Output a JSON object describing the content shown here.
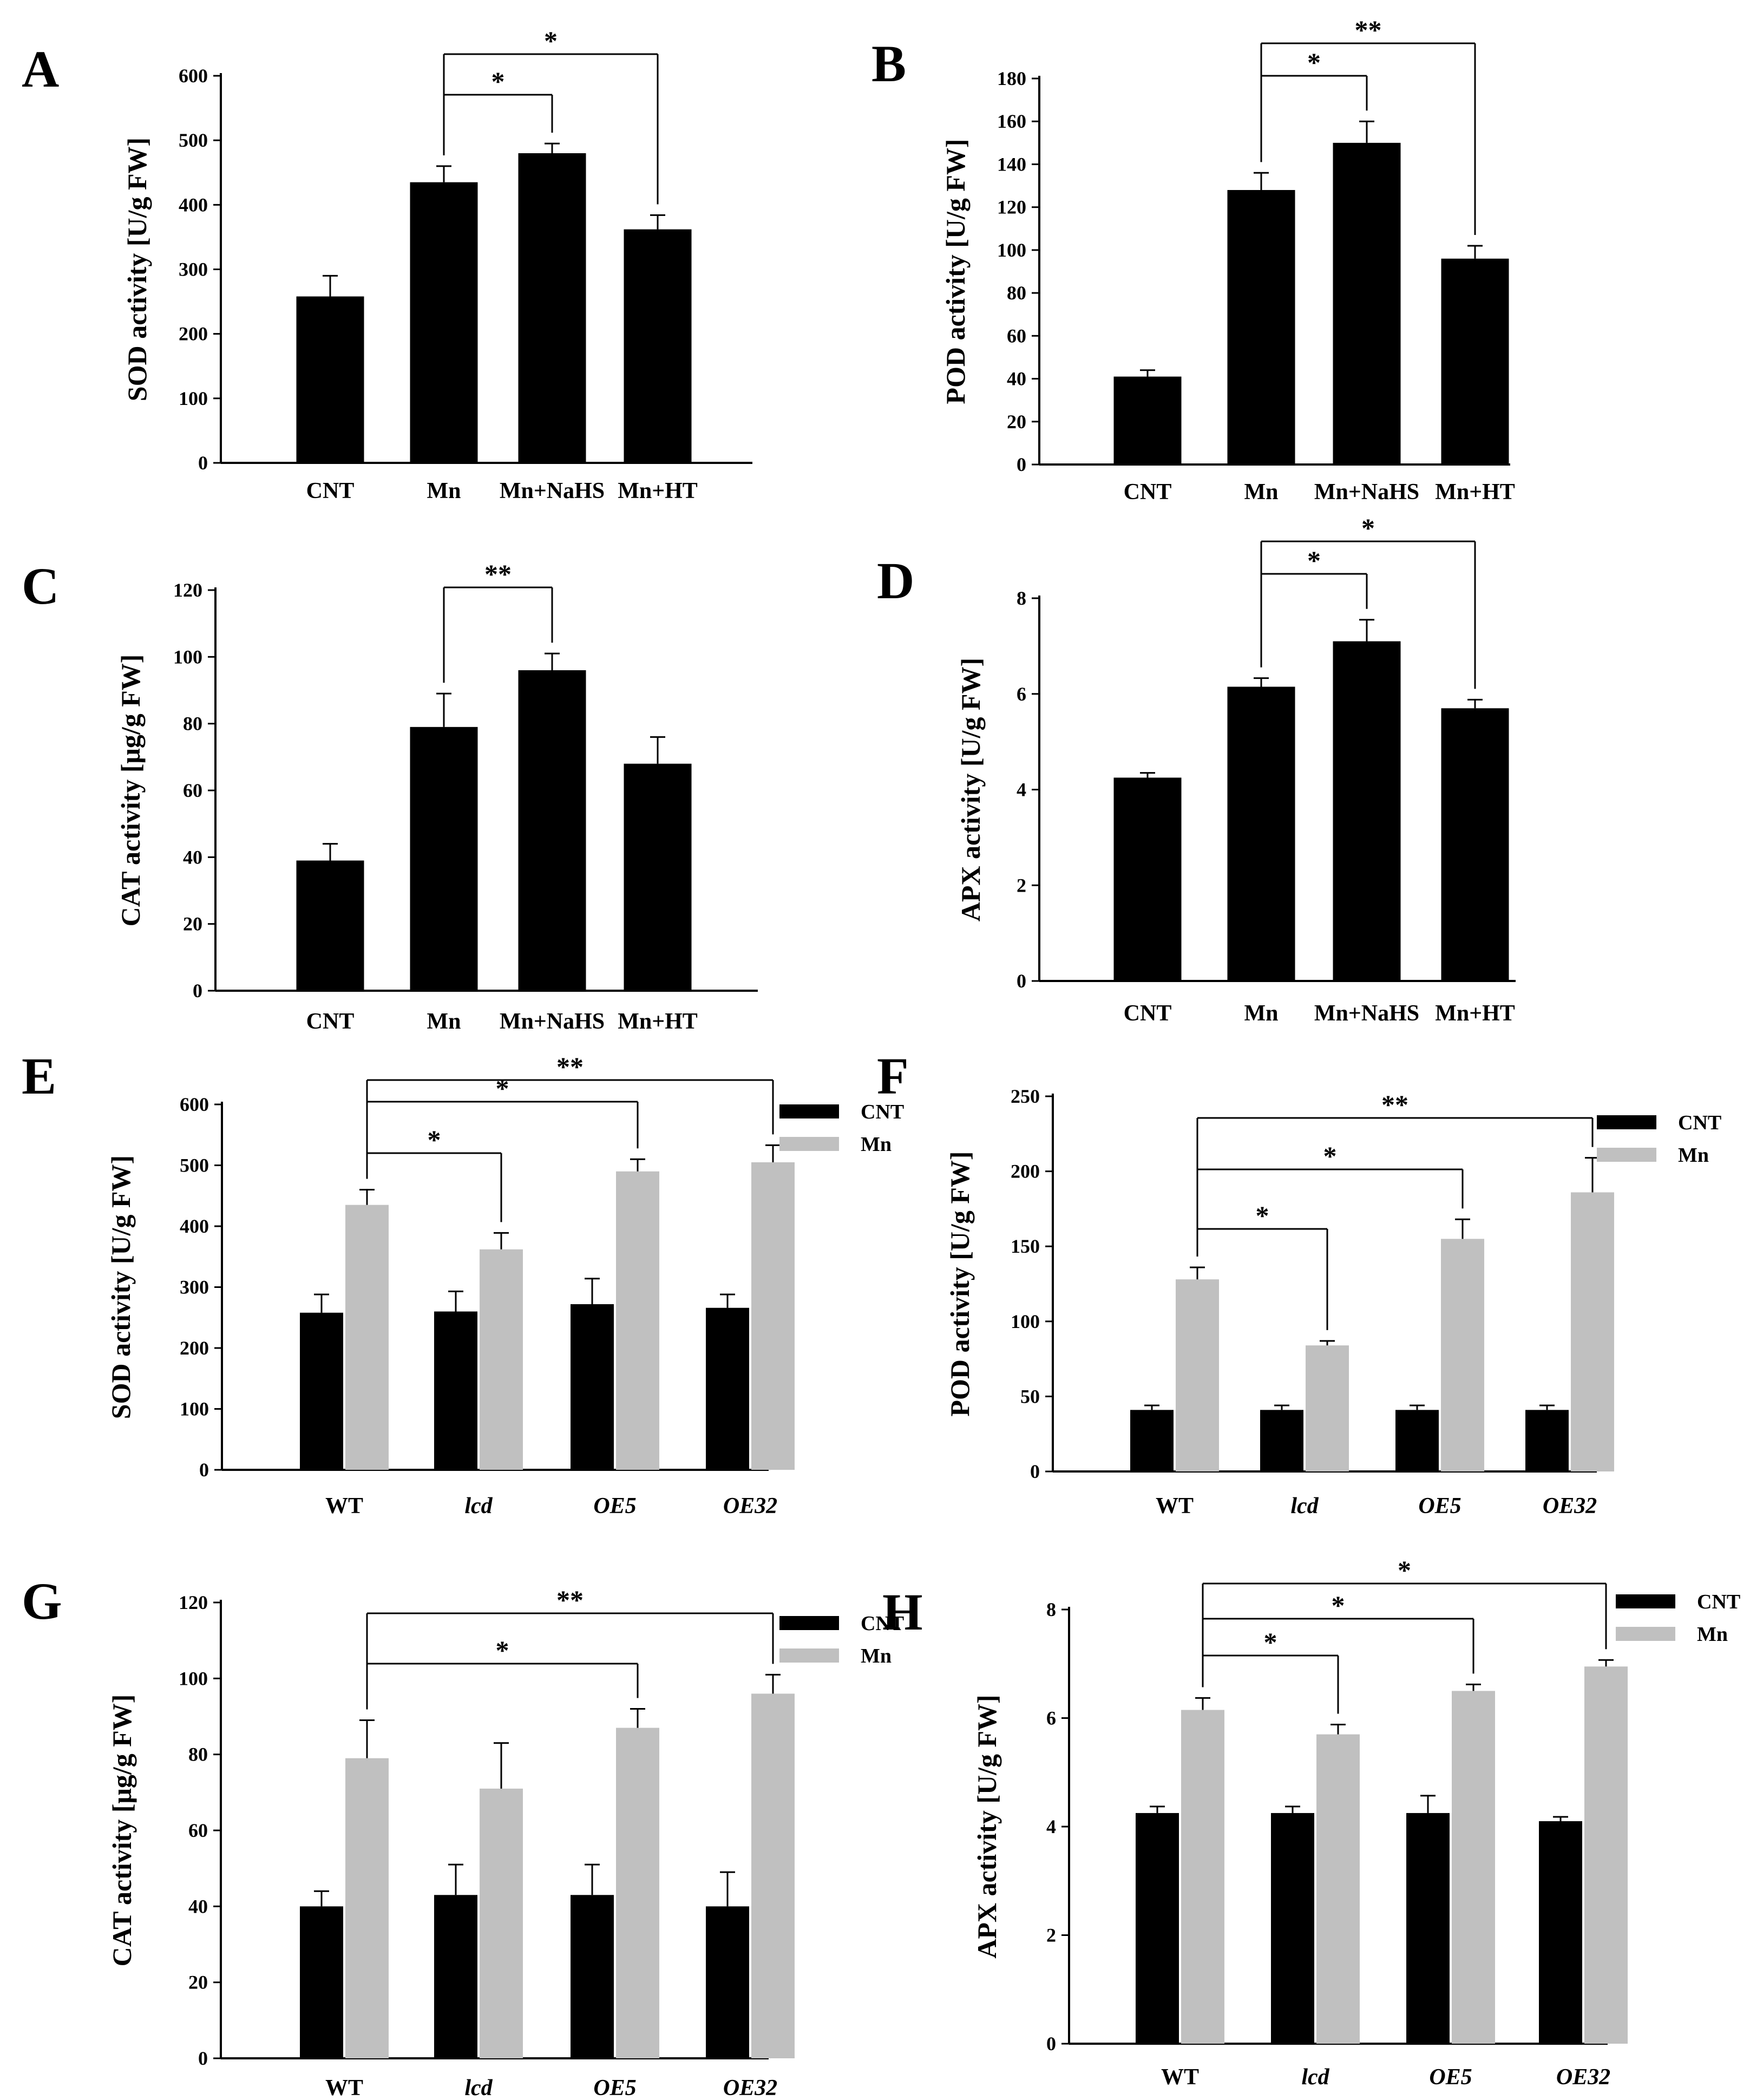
{
  "figure": {
    "colors": {
      "bar": "#000000",
      "control": "#000000",
      "treatment": "#c0c0c0",
      "axis": "#000000",
      "bracket": "#000000"
    }
  },
  "chart_data": [
    {
      "panel": "A",
      "type": "bar",
      "categories": [
        "CNT",
        "Mn",
        "Mn+NaHS",
        "Mn+HT"
      ],
      "values": [
        258,
        435,
        480,
        362
      ],
      "errors": [
        32,
        25,
        15,
        22
      ],
      "ylabel": "SOD activity [U/g FW]",
      "ylim": [
        0,
        600
      ],
      "yticks": [
        0,
        100,
        200,
        300,
        400,
        500,
        600
      ],
      "significance": [
        {
          "from": 1,
          "to": 2,
          "label": "*"
        },
        {
          "from": 1,
          "to": 3,
          "label": "*"
        }
      ]
    },
    {
      "panel": "B",
      "type": "bar",
      "categories": [
        "CNT",
        "Mn",
        "Mn+NaHS",
        "Mn+HT"
      ],
      "values": [
        41,
        128,
        150,
        96
      ],
      "errors": [
        3,
        8,
        10,
        6
      ],
      "ylabel": "POD activity [U/g FW]",
      "ylim": [
        0,
        180
      ],
      "yticks": [
        0,
        20,
        40,
        60,
        80,
        100,
        120,
        140,
        160,
        180
      ],
      "significance": [
        {
          "from": 1,
          "to": 2,
          "label": "*"
        },
        {
          "from": 1,
          "to": 3,
          "label": "**"
        }
      ]
    },
    {
      "panel": "C",
      "type": "bar",
      "categories": [
        "CNT",
        "Mn",
        "Mn+NaHS",
        "Mn+HT"
      ],
      "values": [
        39,
        79,
        96,
        68
      ],
      "errors": [
        5,
        10,
        5,
        8
      ],
      "ylabel": "CAT activity [μg/g FW]",
      "ylim": [
        0,
        120
      ],
      "yticks": [
        0,
        20,
        40,
        60,
        80,
        100,
        120
      ],
      "significance": [
        {
          "from": 1,
          "to": 2,
          "label": "**"
        }
      ]
    },
    {
      "panel": "D",
      "type": "bar",
      "categories": [
        "CNT",
        "Mn",
        "Mn+NaHS",
        "Mn+HT"
      ],
      "values": [
        4.25,
        6.15,
        7.1,
        5.7
      ],
      "errors": [
        0.1,
        0.18,
        0.45,
        0.18
      ],
      "ylabel": "APX activity [U/g  FW]",
      "ylim": [
        0,
        8
      ],
      "yticks": [
        0,
        2,
        4,
        6,
        8
      ],
      "significance": [
        {
          "from": 1,
          "to": 2,
          "label": "*"
        },
        {
          "from": 1,
          "to": 3,
          "label": "*"
        }
      ]
    },
    {
      "panel": "E",
      "type": "bar",
      "categories": [
        "WT",
        "lcd",
        "OE5",
        "OE32"
      ],
      "series": [
        {
          "name": "CNT",
          "values": [
            258,
            260,
            272,
            266
          ],
          "errors": [
            30,
            33,
            42,
            22
          ]
        },
        {
          "name": "Mn",
          "values": [
            435,
            362,
            490,
            505
          ],
          "errors": [
            25,
            27,
            20,
            28
          ]
        }
      ],
      "ylabel": "SOD activity [U/g FW]",
      "ylim": [
        0,
        600
      ],
      "yticks": [
        0,
        100,
        200,
        300,
        400,
        500,
        600
      ],
      "significance": [
        {
          "from": 0,
          "to": 1,
          "label": "*"
        },
        {
          "from": 0,
          "to": 2,
          "label": "*"
        },
        {
          "from": 0,
          "to": 3,
          "label": "**"
        }
      ]
    },
    {
      "panel": "F",
      "type": "bar",
      "categories": [
        "WT",
        "lcd",
        "OE5",
        "OE32"
      ],
      "series": [
        {
          "name": "CNT",
          "values": [
            41,
            41,
            41,
            41
          ],
          "errors": [
            3,
            3,
            3,
            3
          ]
        },
        {
          "name": "Mn",
          "values": [
            128,
            84,
            155,
            186
          ],
          "errors": [
            8,
            3,
            13,
            23
          ]
        }
      ],
      "ylabel": "POD activity [U/g FW]",
      "ylim": [
        0,
        250
      ],
      "yticks": [
        0,
        50,
        100,
        150,
        200,
        250
      ],
      "significance": [
        {
          "from": 0,
          "to": 1,
          "label": "*"
        },
        {
          "from": 0,
          "to": 2,
          "label": "*"
        },
        {
          "from": 0,
          "to": 3,
          "label": "**"
        }
      ]
    },
    {
      "panel": "G",
      "type": "bar",
      "categories": [
        "WT",
        "lcd",
        "OE5",
        "OE32"
      ],
      "series": [
        {
          "name": "CNT",
          "values": [
            40,
            43,
            43,
            40
          ],
          "errors": [
            4,
            8,
            8,
            9
          ]
        },
        {
          "name": "Mn",
          "values": [
            79,
            71,
            87,
            96
          ],
          "errors": [
            10,
            12,
            5,
            5
          ]
        }
      ],
      "ylabel": "CAT activity [μg/g FW]",
      "ylim": [
        0,
        120
      ],
      "yticks": [
        0,
        20,
        40,
        60,
        80,
        100,
        120
      ],
      "significance": [
        {
          "from": 0,
          "to": 2,
          "label": "*"
        },
        {
          "from": 0,
          "to": 3,
          "label": "**"
        }
      ]
    },
    {
      "panel": "H",
      "type": "bar",
      "categories": [
        "WT",
        "lcd",
        "OE5",
        "OE32"
      ],
      "series": [
        {
          "name": "CNT",
          "values": [
            4.25,
            4.25,
            4.25,
            4.1
          ],
          "errors": [
            0.12,
            0.12,
            0.32,
            0.08
          ]
        },
        {
          "name": "Mn",
          "values": [
            6.15,
            5.7,
            6.5,
            6.95
          ],
          "errors": [
            0.22,
            0.18,
            0.12,
            0.12
          ]
        }
      ],
      "ylabel": "APX activity [U/g  FW]",
      "ylim": [
        0,
        8
      ],
      "yticks": [
        0,
        2,
        4,
        6,
        8
      ],
      "significance": [
        {
          "from": 0,
          "to": 1,
          "label": "*"
        },
        {
          "from": 0,
          "to": 2,
          "label": "*"
        },
        {
          "from": 0,
          "to": 3,
          "label": "*"
        }
      ]
    }
  ]
}
